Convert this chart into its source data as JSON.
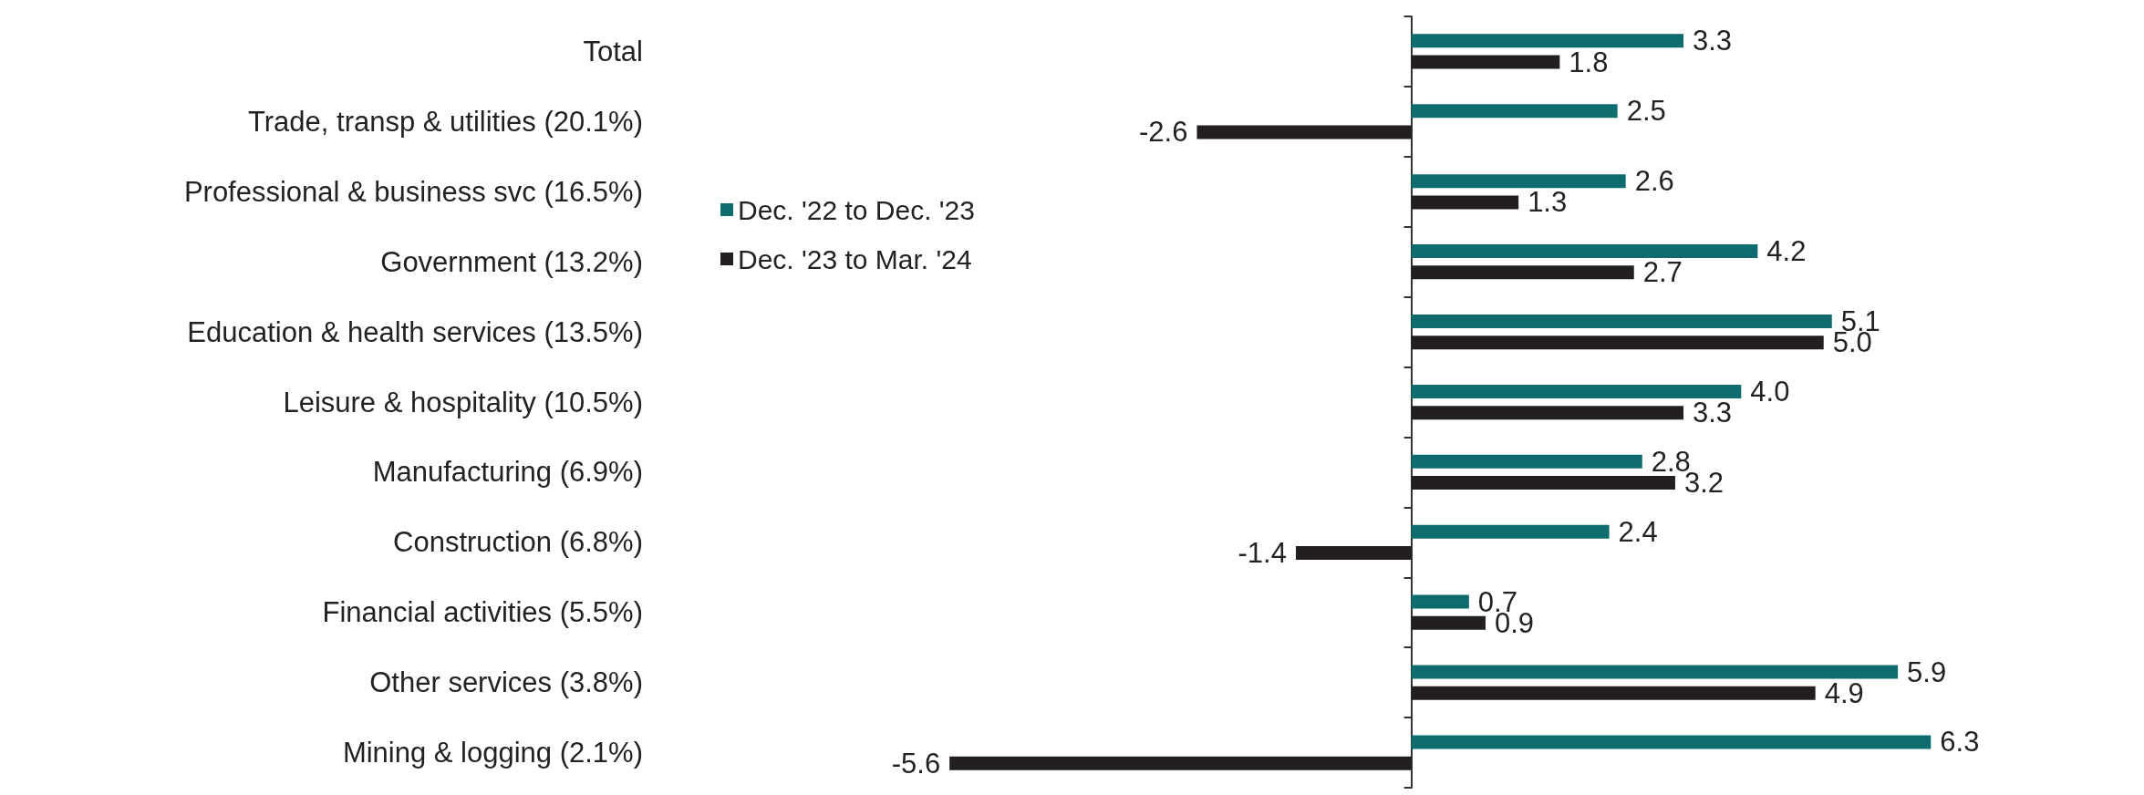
{
  "chart_data": {
    "type": "bar",
    "orientation": "horizontal",
    "legend": "left",
    "categories": [
      "Total",
      "Trade, transp & utilities (20.1%)",
      "Professional & business svc (16.5%)",
      "Government (13.2%)",
      "Education & health services (13.5%)",
      "Leisure & hospitality (10.5%)",
      "Manufacturing (6.9%)",
      "Construction (6.8%)",
      "Financial activities (5.5%)",
      "Other services (3.8%)",
      "Mining & logging (2.1%)"
    ],
    "series": [
      {
        "name": "Dec. '22 to Dec. '23",
        "color": "#0e6b6e",
        "values": [
          3.3,
          2.5,
          2.6,
          4.2,
          5.1,
          4.0,
          2.8,
          2.4,
          0.7,
          5.9,
          6.3
        ],
        "value_labels": [
          "3.3",
          "2.5",
          "2.6",
          "4.2",
          "5.1",
          "4.0",
          "2.8",
          "2.4",
          "0.7",
          "5.9",
          "6.3"
        ]
      },
      {
        "name": "Dec. '23 to Mar. '24",
        "color": "#231f20",
        "values": [
          1.8,
          -2.6,
          1.3,
          2.7,
          5.0,
          3.3,
          3.2,
          -1.4,
          0.9,
          4.9,
          -5.6
        ],
        "value_labels": [
          "1.8",
          "-2.6",
          "1.3",
          "2.7",
          "5.0",
          "3.3",
          "3.2",
          "-1.4",
          "0.9",
          "4.9",
          "-5.6"
        ]
      }
    ]
  }
}
